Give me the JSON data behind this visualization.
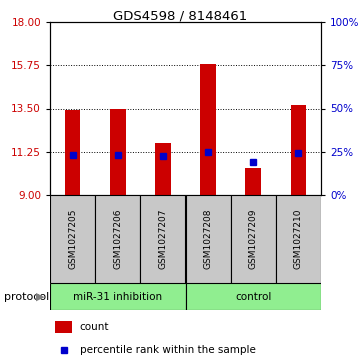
{
  "title": "GDS4598 / 8148461",
  "samples": [
    "GSM1027205",
    "GSM1027206",
    "GSM1027207",
    "GSM1027208",
    "GSM1027209",
    "GSM1027210"
  ],
  "red_values": [
    13.42,
    13.5,
    11.72,
    15.82,
    10.42,
    13.68
  ],
  "blue_values": [
    11.1,
    11.1,
    11.05,
    11.26,
    10.7,
    11.2
  ],
  "bar_bottom": 9.0,
  "ylim_left": [
    9,
    18
  ],
  "ylim_right": [
    0,
    100
  ],
  "left_ticks": [
    9,
    11.25,
    13.5,
    15.75,
    18
  ],
  "right_ticks": [
    0,
    25,
    50,
    75,
    100
  ],
  "right_tick_labels": [
    "0%",
    "25%",
    "50%",
    "75%",
    "100%"
  ],
  "group1_label": "miR-31 inhibition",
  "group2_label": "control",
  "group_color": "#90EE90",
  "protocol_label": "protocol",
  "legend_count_label": "count",
  "legend_pct_label": "percentile rank within the sample",
  "bar_color": "#CC0000",
  "blue_marker_color": "#0000CC",
  "sample_bg_color": "#C8C8C8",
  "fig_bg_color": "#FFFFFF",
  "left_axis_color": "#CC0000",
  "right_axis_color": "#0000CC",
  "bar_width": 0.35
}
